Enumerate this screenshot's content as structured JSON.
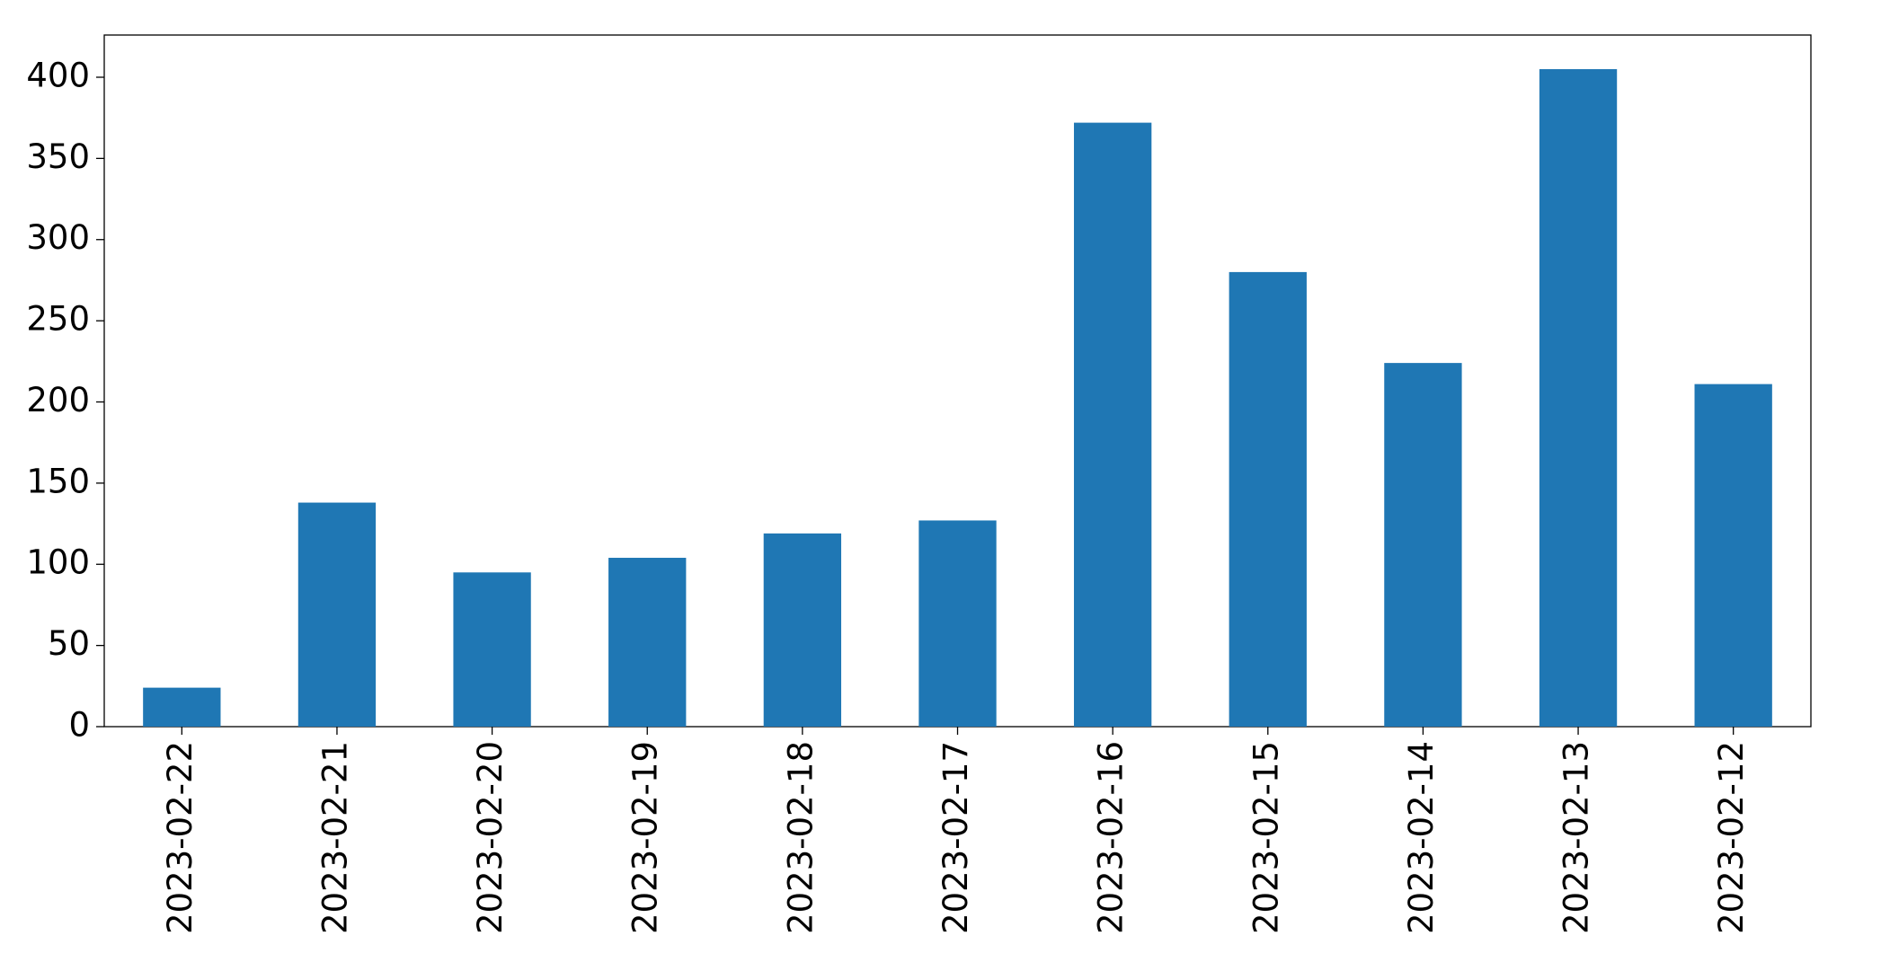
{
  "chart_data": {
    "type": "bar",
    "categories": [
      "2023-02-22",
      "2023-02-21",
      "2023-02-20",
      "2023-02-19",
      "2023-02-18",
      "2023-02-17",
      "2023-02-16",
      "2023-02-15",
      "2023-02-14",
      "2023-02-13",
      "2023-02-12"
    ],
    "values": [
      24,
      138,
      95,
      104,
      119,
      127,
      372,
      280,
      224,
      405,
      211
    ],
    "color": "#1f77b4",
    "ylim": [
      0,
      426
    ],
    "yticks": [
      0,
      50,
      100,
      150,
      200,
      250,
      300,
      350,
      400
    ],
    "grid": false
  }
}
